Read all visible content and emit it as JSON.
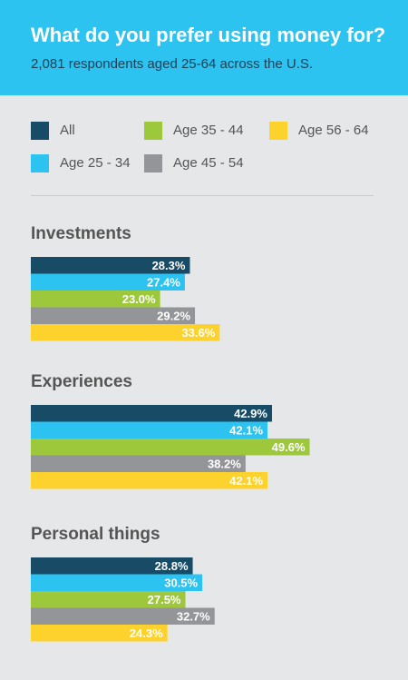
{
  "header": {
    "title": "What do you prefer using money for?",
    "subtitle": "2,081 respondents aged 25-64 across the U.S."
  },
  "chart_data": {
    "type": "bar",
    "orientation": "horizontal",
    "title": "What do you prefer using money for?",
    "subtitle": "2,081 respondents aged 25-64 across the U.S.",
    "categories": [
      "Investments",
      "Experiences",
      "Personal things"
    ],
    "series": [
      {
        "name": "All",
        "color": "#174b66",
        "values": [
          28.3,
          42.9,
          28.8
        ],
        "labels": [
          "28.3%",
          "42.9%",
          "28.8%"
        ]
      },
      {
        "name": "Age 25 - 34",
        "color": "#2cc3f1",
        "values": [
          27.4,
          42.1,
          30.5
        ],
        "labels": [
          "27.4%",
          "42.1%",
          "30.5%"
        ]
      },
      {
        "name": "Age 35 - 44",
        "color": "#9dc83b",
        "values": [
          23.0,
          49.6,
          27.5
        ],
        "labels": [
          "23.0%",
          "49.6%",
          "27.5%"
        ]
      },
      {
        "name": "Age 45 - 54",
        "color": "#939598",
        "values": [
          29.2,
          38.2,
          32.7
        ],
        "labels": [
          "29.2%",
          "38.2%",
          "32.7%"
        ]
      },
      {
        "name": "Age 56 - 64",
        "color": "#fdd22c",
        "values": [
          33.6,
          42.1,
          24.3
        ],
        "labels": [
          "33.6%",
          "42.1%",
          "24.3%"
        ]
      }
    ],
    "grid": false,
    "legend_position": "top"
  }
}
